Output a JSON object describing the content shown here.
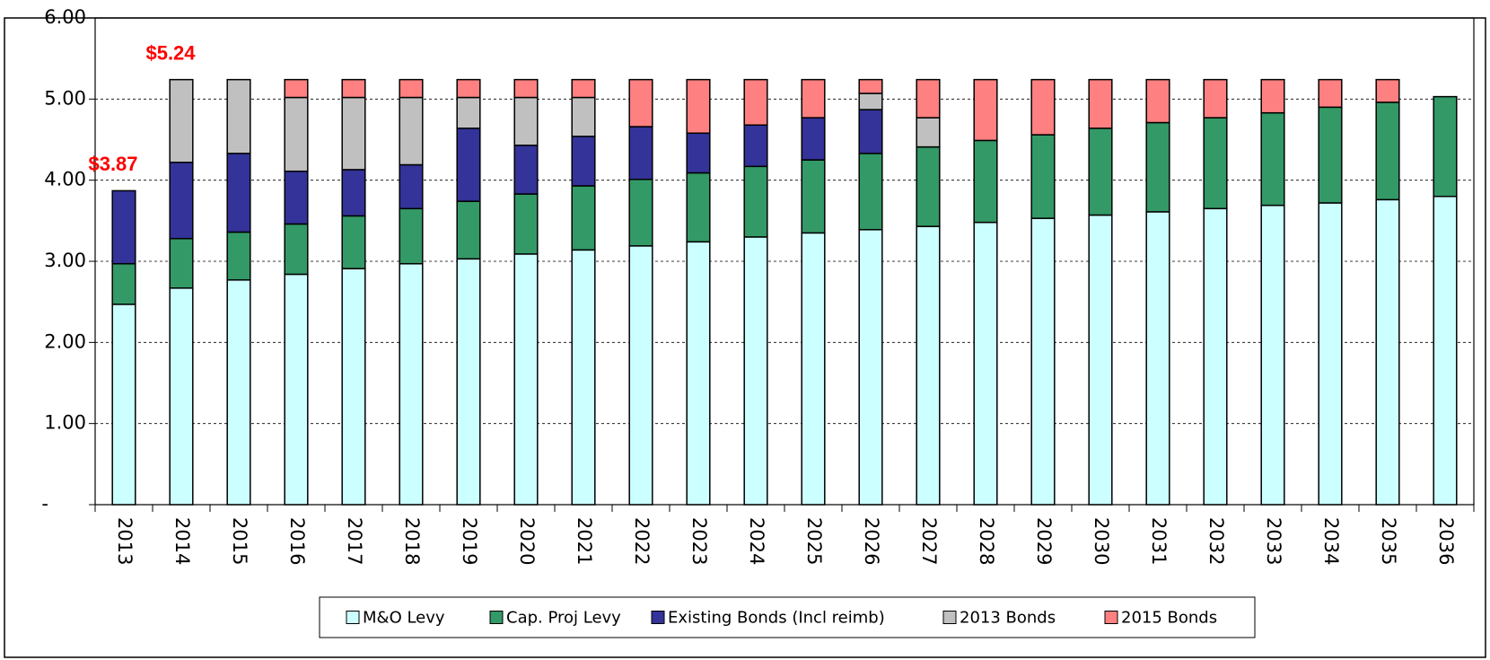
{
  "chart_data": {
    "type": "stacked_bar",
    "categories": [
      "2013",
      "2014",
      "2015",
      "2016",
      "2017",
      "2018",
      "2019",
      "2020",
      "2021",
      "2022",
      "2023",
      "2024",
      "2025",
      "2026",
      "2027",
      "2028",
      "2029",
      "2030",
      "2031",
      "2032",
      "2033",
      "2034",
      "2035",
      "2036"
    ],
    "series": [
      {
        "name": "M&O Levy",
        "color": "#ccffff",
        "values": [
          2.47,
          2.67,
          2.77,
          2.84,
          2.91,
          2.97,
          3.03,
          3.09,
          3.14,
          3.19,
          3.24,
          3.3,
          3.35,
          3.39,
          3.43,
          3.48,
          3.53,
          3.57,
          3.61,
          3.65,
          3.69,
          3.72,
          3.76,
          3.8
        ]
      },
      {
        "name": "Cap. Proj Levy",
        "color": "#339966",
        "values": [
          0.5,
          0.61,
          0.59,
          0.62,
          0.65,
          0.68,
          0.71,
          0.74,
          0.79,
          0.82,
          0.85,
          0.87,
          0.9,
          0.94,
          0.98,
          1.01,
          1.03,
          1.07,
          1.1,
          1.12,
          1.14,
          1.18,
          1.2,
          1.23
        ]
      },
      {
        "name": "Existing Bonds (Incl reimb)",
        "color": "#333399",
        "values": [
          0.9,
          0.94,
          0.97,
          0.65,
          0.57,
          0.54,
          0.9,
          0.6,
          0.61,
          0.65,
          0.49,
          0.51,
          0.52,
          0.54,
          0,
          0,
          0,
          0,
          0,
          0,
          0,
          0,
          0,
          0
        ]
      },
      {
        "name": "2013 Bonds",
        "color": "#c0c0c0",
        "values": [
          0,
          1.02,
          0.91,
          0.91,
          0.89,
          0.83,
          0.38,
          0.59,
          0.48,
          0,
          0,
          0,
          0,
          0.2,
          0.36,
          0,
          0,
          0,
          0,
          0,
          0,
          0,
          0,
          0
        ]
      },
      {
        "name": "2015 Bonds",
        "color": "#ff8080",
        "values": [
          0,
          0,
          0,
          0.22,
          0.22,
          0.22,
          0.22,
          0.22,
          0.22,
          0.58,
          0.66,
          0.56,
          0.47,
          0.17,
          0.47,
          0.75,
          0.68,
          0.6,
          0.53,
          0.47,
          0.41,
          0.34,
          0.28,
          0
        ]
      }
    ],
    "annotations": [
      {
        "text": "$3.87"
      },
      {
        "text": "$5.24"
      }
    ],
    "ylim": [
      0,
      6
    ],
    "yticks": [
      {
        "value": 0,
        "label": "-"
      },
      {
        "value": 1,
        "label": "1.00"
      },
      {
        "value": 2,
        "label": "2.00"
      },
      {
        "value": 3,
        "label": "3.00"
      },
      {
        "value": 4,
        "label": "4.00"
      },
      {
        "value": 5,
        "label": "5.00"
      },
      {
        "value": 6,
        "label": "6.00"
      }
    ],
    "grid": true,
    "legend": "bottom"
  }
}
